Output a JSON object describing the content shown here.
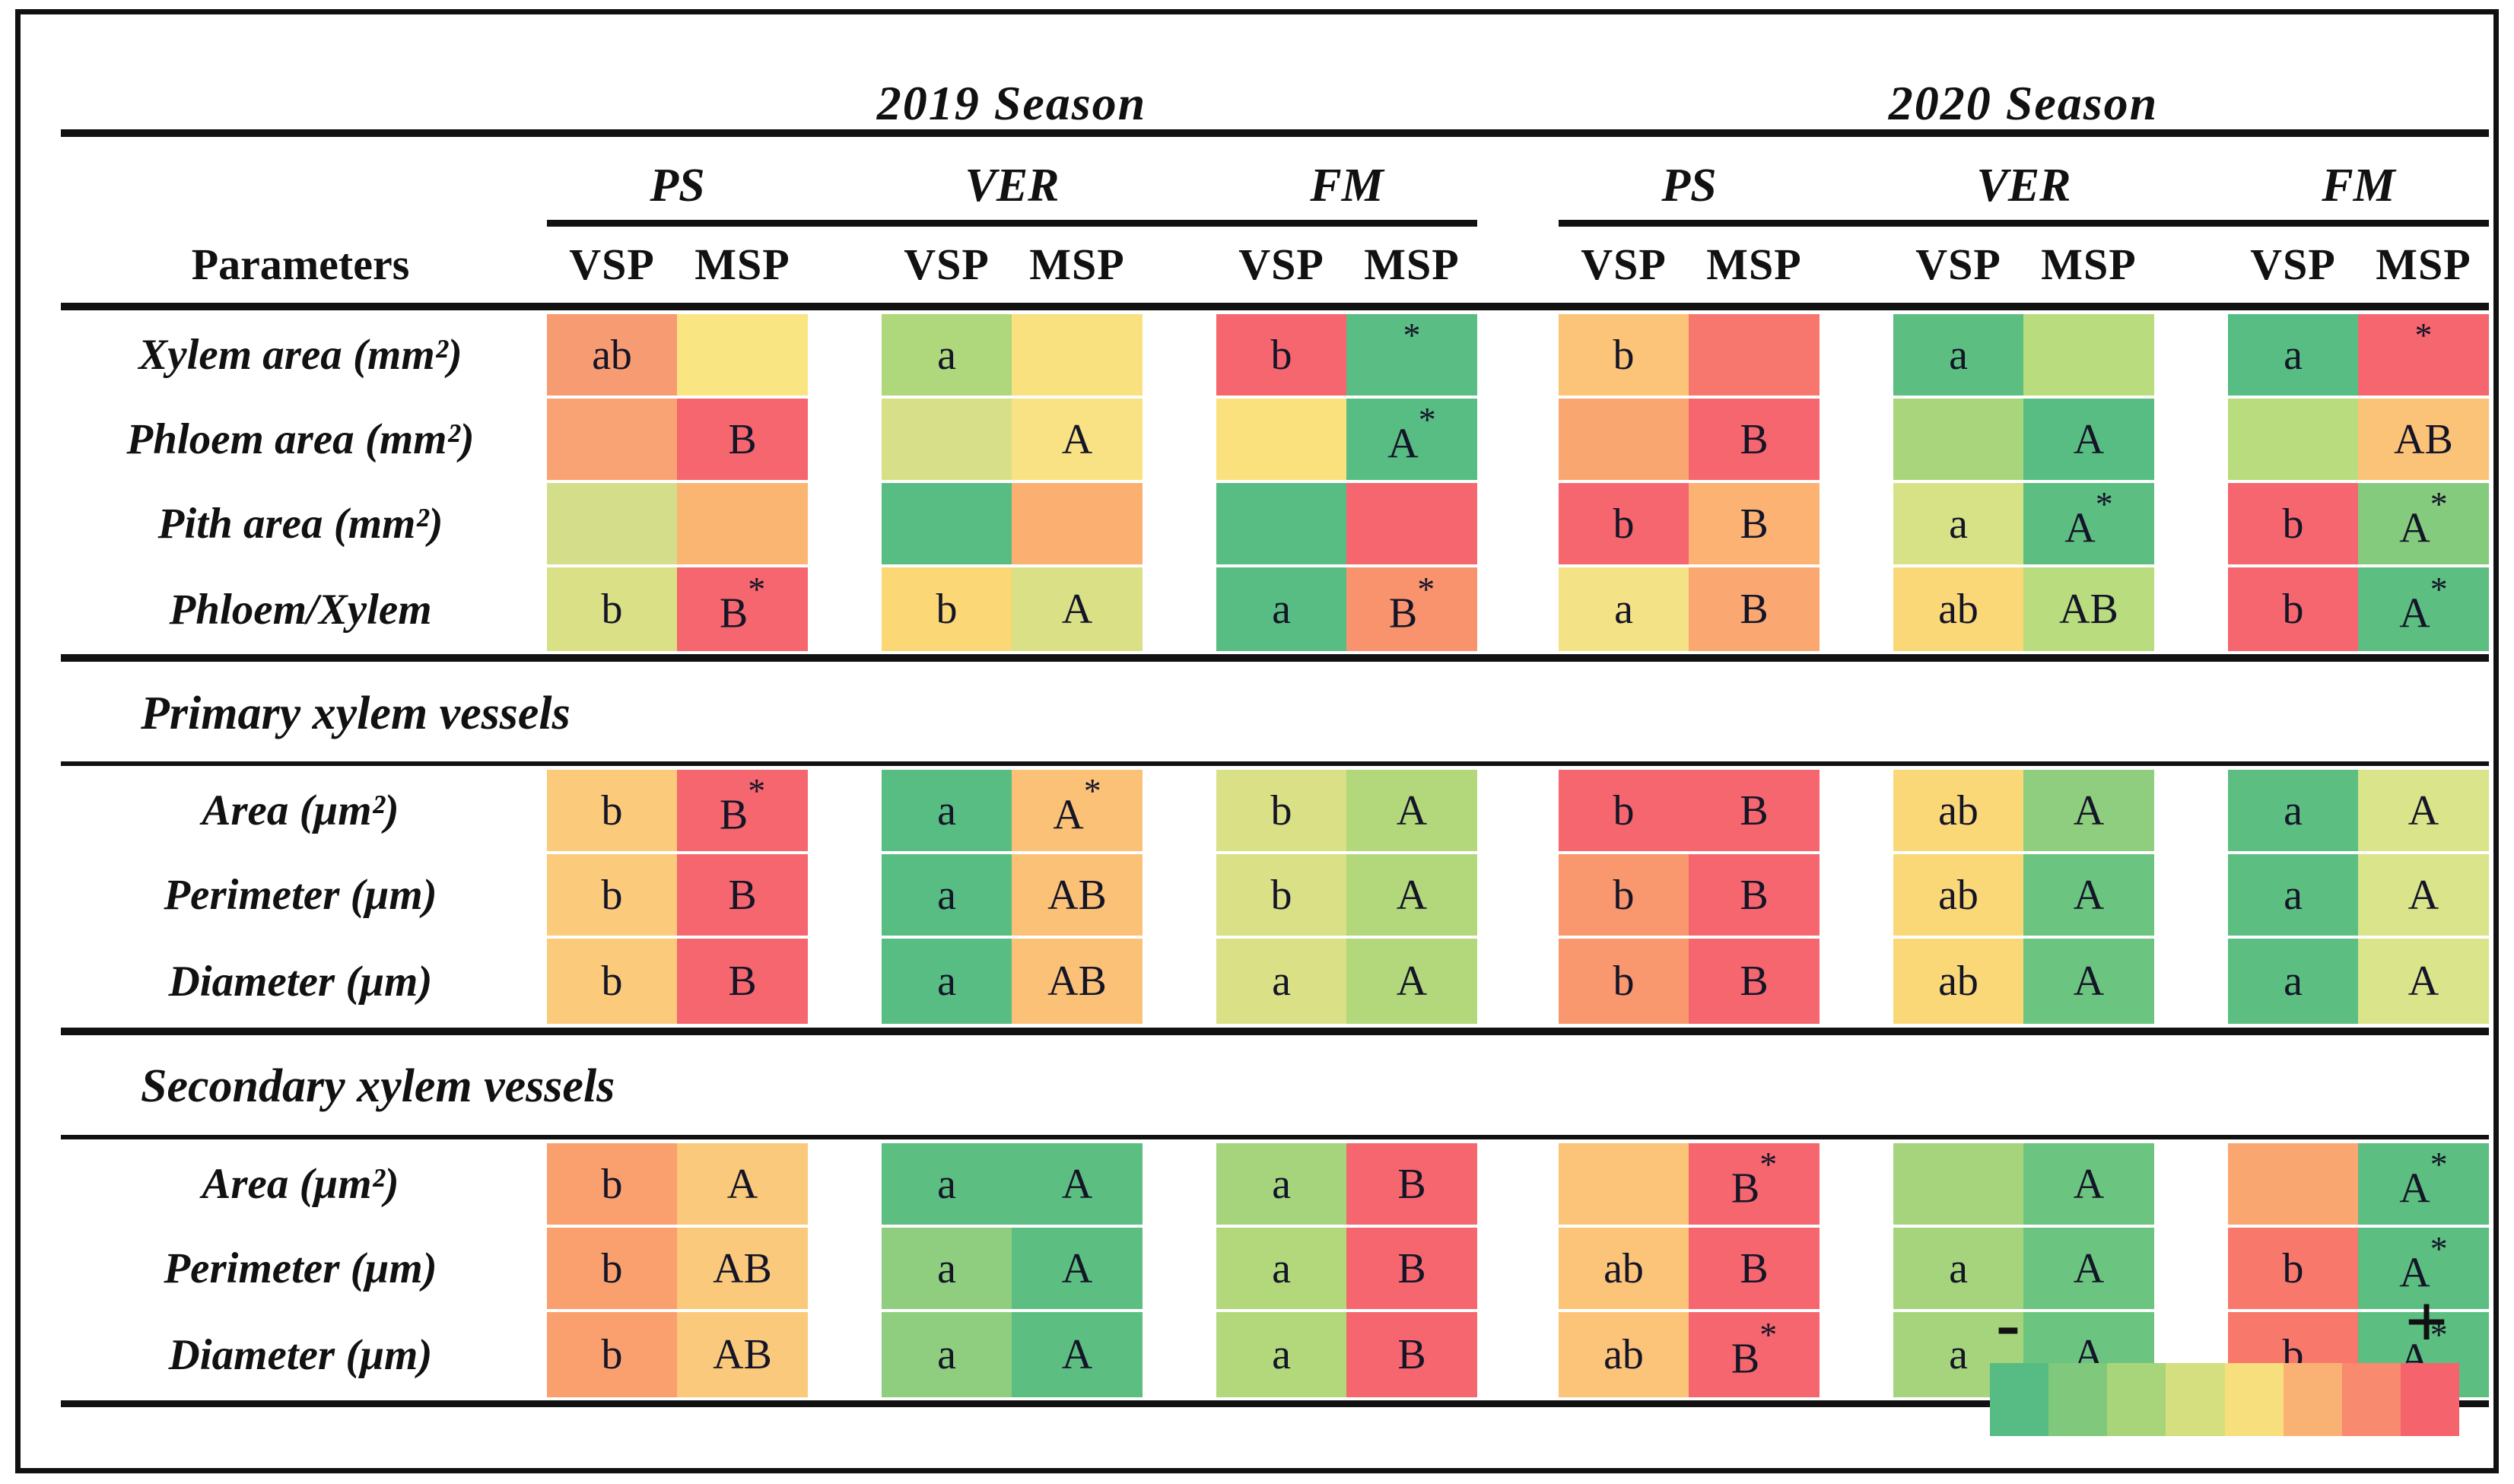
{
  "figure": {
    "seasons": [
      {
        "year": "2019",
        "label": "2019 Season"
      },
      {
        "year": "2020",
        "label": "2020 Season"
      }
    ],
    "stages": [
      "PS",
      "VER",
      "FM"
    ],
    "systems": [
      "VSP",
      "MSP"
    ],
    "parameters_header": "Parameters",
    "chart_data": {
      "type": "heatmap",
      "columns": [
        "2019-PS-VSP",
        "2019-PS-MSP",
        "2019-VER-VSP",
        "2019-VER-MSP",
        "2019-FM-VSP",
        "2019-FM-MSP",
        "2020-PS-VSP",
        "2020-PS-MSP",
        "2020-VER-VSP",
        "2020-VER-MSP",
        "2020-FM-VSP",
        "2020-FM-MSP"
      ],
      "scale": {
        "low_label": "-",
        "high_label": "+",
        "meaning": "green = low, red = high"
      }
    },
    "sections": [
      {
        "header": "",
        "rows": [
          {
            "label": "Xylem area (mm²)",
            "cells": [
              {
                "t": "ab",
                "c": "#F79B72"
              },
              {
                "t": "",
                "c": "#FAE583"
              },
              {
                "t": "a",
                "c": "#AFD77C"
              },
              {
                "t": "",
                "c": "#FAE180"
              },
              {
                "t": "b",
                "c": "#F5666E"
              },
              {
                "t": "*",
                "c": "#5ABD84"
              },
              {
                "t": "b",
                "c": "#FBC478"
              },
              {
                "t": "",
                "c": "#F7776F"
              },
              {
                "t": "a",
                "c": "#5CBE81"
              },
              {
                "t": "",
                "c": "#B9DC7E"
              },
              {
                "t": "a",
                "c": "#58BD83"
              },
              {
                "t": "*",
                "c": "#F5666E"
              }
            ]
          },
          {
            "label": "Phloem area (mm²)",
            "cells": [
              {
                "t": "",
                "c": "#F9A273"
              },
              {
                "t": "B",
                "c": "#F5666E"
              },
              {
                "t": "",
                "c": "#D7E088"
              },
              {
                "t": "A",
                "c": "#F8E284"
              },
              {
                "t": "",
                "c": "#FAE17E"
              },
              {
                "t": "A*",
                "c": "#58BD83"
              },
              {
                "t": "",
                "c": "#F9A671"
              },
              {
                "t": "B",
                "c": "#F5666E"
              },
              {
                "t": "",
                "c": "#A9D67C"
              },
              {
                "t": "A",
                "c": "#58BD83"
              },
              {
                "t": "",
                "c": "#B9DC7E"
              },
              {
                "t": "AB",
                "c": "#FBC377"
              }
            ]
          },
          {
            "label": "Pith area (mm²)",
            "cells": [
              {
                "t": "",
                "c": "#D4DE8A"
              },
              {
                "t": "",
                "c": "#FBB573"
              },
              {
                "t": "",
                "c": "#58BD83"
              },
              {
                "t": "",
                "c": "#FBB071"
              },
              {
                "t": "",
                "c": "#58BD83"
              },
              {
                "t": "",
                "c": "#F5666E"
              },
              {
                "t": "b",
                "c": "#F5666E"
              },
              {
                "t": "B",
                "c": "#FBB273"
              },
              {
                "t": "a",
                "c": "#D7E185"
              },
              {
                "t": "A*",
                "c": "#5CBE81"
              },
              {
                "t": "b",
                "c": "#F5666E"
              },
              {
                "t": "A*",
                "c": "#85CB7D"
              }
            ]
          },
          {
            "label": "Phloem/Xylem",
            "cells": [
              {
                "t": "b",
                "c": "#D9E085"
              },
              {
                "t": "B*",
                "c": "#F5666E"
              },
              {
                "t": "b",
                "c": "#FBD775"
              },
              {
                "t": "A",
                "c": "#D9E085"
              },
              {
                "t": "a",
                "c": "#58BD83"
              },
              {
                "t": "B*",
                "c": "#F8936D"
              },
              {
                "t": "a",
                "c": "#F4E286"
              },
              {
                "t": "B",
                "c": "#FAA771"
              },
              {
                "t": "ab",
                "c": "#FAD878"
              },
              {
                "t": "AB",
                "c": "#B9DC7E"
              },
              {
                "t": "b",
                "c": "#F5666E"
              },
              {
                "t": "A*",
                "c": "#5CBE81"
              }
            ]
          }
        ]
      },
      {
        "header": "Primary xylem vessels",
        "rows": [
          {
            "label": "Area (μm²)",
            "cells": [
              {
                "t": "b",
                "c": "#FBCA7A"
              },
              {
                "t": "B*",
                "c": "#F5666E"
              },
              {
                "t": "a",
                "c": "#58BD83"
              },
              {
                "t": "A*",
                "c": "#FBC277"
              },
              {
                "t": "b",
                "c": "#D9E085"
              },
              {
                "t": "A",
                "c": "#B2D87B"
              },
              {
                "t": "b",
                "c": "#F5666E"
              },
              {
                "t": "B",
                "c": "#F5666E"
              },
              {
                "t": "ab",
                "c": "#FAD878"
              },
              {
                "t": "A",
                "c": "#8FCE7F"
              },
              {
                "t": "a",
                "c": "#5CBE81"
              },
              {
                "t": "A",
                "c": "#D9E48B"
              }
            ]
          },
          {
            "label": "Perimeter (μm)",
            "cells": [
              {
                "t": "b",
                "c": "#FBCA7A"
              },
              {
                "t": "B",
                "c": "#F5666E"
              },
              {
                "t": "a",
                "c": "#58BD83"
              },
              {
                "t": "AB",
                "c": "#FBC277"
              },
              {
                "t": "b",
                "c": "#D9E085"
              },
              {
                "t": "A",
                "c": "#B2D87B"
              },
              {
                "t": "b",
                "c": "#F9976E"
              },
              {
                "t": "B",
                "c": "#F5666E"
              },
              {
                "t": "ab",
                "c": "#FAD878"
              },
              {
                "t": "A",
                "c": "#6BC47F"
              },
              {
                "t": "a",
                "c": "#5CBE81"
              },
              {
                "t": "A",
                "c": "#D9E48B"
              }
            ]
          },
          {
            "label": "Diameter (μm)",
            "cells": [
              {
                "t": "b",
                "c": "#FBCA7A"
              },
              {
                "t": "B",
                "c": "#F5666E"
              },
              {
                "t": "a",
                "c": "#58BD83"
              },
              {
                "t": "AB",
                "c": "#FBC277"
              },
              {
                "t": "a",
                "c": "#D9E085"
              },
              {
                "t": "A",
                "c": "#B2D87B"
              },
              {
                "t": "b",
                "c": "#F9976E"
              },
              {
                "t": "B",
                "c": "#F5666E"
              },
              {
                "t": "ab",
                "c": "#FAD878"
              },
              {
                "t": "A",
                "c": "#6BC47F"
              },
              {
                "t": "a",
                "c": "#5CBE81"
              },
              {
                "t": "A",
                "c": "#D9E48B"
              }
            ]
          }
        ]
      },
      {
        "header": "Secondary xylem vessels",
        "rows": [
          {
            "label": "Area (μm²)",
            "cells": [
              {
                "t": "b",
                "c": "#F9A06E"
              },
              {
                "t": "A",
                "c": "#FBC97B"
              },
              {
                "t": "a",
                "c": "#5CBE81"
              },
              {
                "t": "A",
                "c": "#5CBE81"
              },
              {
                "t": "a",
                "c": "#A5D47D"
              },
              {
                "t": "B",
                "c": "#F5666E"
              },
              {
                "t": "",
                "c": "#FBC478"
              },
              {
                "t": "B*",
                "c": "#F5666E"
              },
              {
                "t": "",
                "c": "#A5D47D"
              },
              {
                "t": "A",
                "c": "#6BC47F"
              },
              {
                "t": "",
                "c": "#F9A671"
              },
              {
                "t": "A*",
                "c": "#5CBE81"
              }
            ]
          },
          {
            "label": "Perimeter (μm)",
            "cells": [
              {
                "t": "b",
                "c": "#F9A06E"
              },
              {
                "t": "AB",
                "c": "#FBC97B"
              },
              {
                "t": "a",
                "c": "#8FCE7F"
              },
              {
                "t": "A",
                "c": "#5CBE81"
              },
              {
                "t": "a",
                "c": "#B2D87B"
              },
              {
                "t": "B",
                "c": "#F5666E"
              },
              {
                "t": "ab",
                "c": "#FBC478"
              },
              {
                "t": "B",
                "c": "#F5666E"
              },
              {
                "t": "a",
                "c": "#A5D47D"
              },
              {
                "t": "A",
                "c": "#6BC47F"
              },
              {
                "t": "b",
                "c": "#F8786B"
              },
              {
                "t": "A*",
                "c": "#5CBE81"
              }
            ]
          },
          {
            "label": "Diameter (μm)",
            "cells": [
              {
                "t": "b",
                "c": "#F9A06E"
              },
              {
                "t": "AB",
                "c": "#FBC97B"
              },
              {
                "t": "a",
                "c": "#8FCE7F"
              },
              {
                "t": "A",
                "c": "#5CBE81"
              },
              {
                "t": "a",
                "c": "#B2D87B"
              },
              {
                "t": "B",
                "c": "#F5666E"
              },
              {
                "t": "ab",
                "c": "#FBC478"
              },
              {
                "t": "B*",
                "c": "#F5666E"
              },
              {
                "t": "a",
                "c": "#A5D47D"
              },
              {
                "t": "A",
                "c": "#6BC47F"
              },
              {
                "t": "b",
                "c": "#F8786B"
              },
              {
                "t": "A*",
                "c": "#5CBE81"
              }
            ]
          }
        ]
      }
    ],
    "legend": {
      "minus": "-",
      "plus": "+",
      "colors": [
        "#56BC83",
        "#80C97C",
        "#A8D57A",
        "#D5DF7F",
        "#F8DF7D",
        "#FAB274",
        "#F88A6F",
        "#F5636C"
      ]
    }
  }
}
